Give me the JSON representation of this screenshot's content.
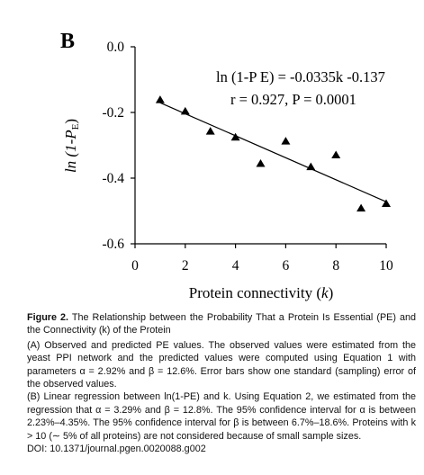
{
  "panel_label": "B",
  "chart_data": {
    "type": "scatter",
    "xlabel": "Protein connectivity",
    "xlabel_var": "k",
    "ylabel": "ln (1-P",
    "ylabel_sub": "E",
    "xlim": [
      0,
      10
    ],
    "ylim": [
      -0.6,
      0.0
    ],
    "x_ticks": [
      "0",
      "2",
      "4",
      "6",
      "8",
      "10"
    ],
    "y_ticks": [
      "0.0",
      "-0.2",
      "-0.4",
      "-0.6"
    ],
    "series": [
      {
        "name": "observed",
        "marker": "triangle",
        "x": [
          1,
          2,
          3,
          4,
          5,
          6,
          7,
          8,
          9,
          10
        ],
        "y": [
          -0.162,
          -0.197,
          -0.258,
          -0.276,
          -0.356,
          -0.288,
          -0.366,
          -0.33,
          -0.492,
          -0.478
        ]
      }
    ],
    "regression": {
      "intercept": -0.137,
      "slope": -0.0335,
      "x_range": [
        1,
        10
      ]
    },
    "annotations": {
      "equation": "ln (1-P E) = -0.0335k -0.137",
      "stats": "r = 0.927,  P = 0.0001"
    }
  },
  "caption": {
    "figure_label": "Figure 2.",
    "title": "The Relationship between the Probability That a Protein Is Essential (PE) and the Connectivity (k) of the Protein",
    "para_a": "(A) Observed and predicted PE values. The observed values were estimated from the yeast PPI network and the predicted values were computed using Equation 1 with parameters α = 2.92% and β = 12.6%. Error bars show one standard (sampling) error of the observed values.",
    "para_b": "(B) Linear regression between ln(1-PE) and k. Using Equation 2, we estimated from the regression that α = 3.29% and β = 12.8%. The 95% confidence interval for α is between 2.23%–4.35%. The 95% confidence interval for β is between 6.7%–18.6%. Proteins with k > 10 (∼ 5% of all proteins) are not considered because of small sample sizes.",
    "doi": "DOI: 10.1371/journal.pgen.0020088.g002"
  }
}
